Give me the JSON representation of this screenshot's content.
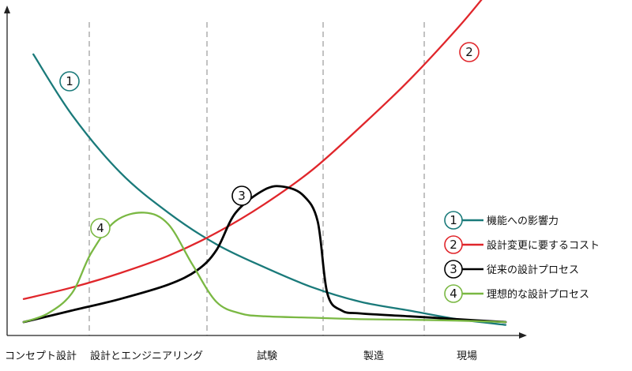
{
  "chart_data": {
    "type": "line",
    "title": "",
    "xlabel": "",
    "ylabel": "",
    "x_scale": "schematic (no numeric ticks)",
    "y_scale": "relative (no numeric ticks)",
    "phases": [
      "コンセプト設計",
      "設計とエンジニアリング",
      "試験",
      "製造",
      "現場"
    ],
    "grid": "dashed vertical dividers between phases",
    "legend_placement": "right",
    "series": [
      {
        "name": "機能への影響力",
        "marker_label": "1",
        "color": "#1a7a7a",
        "points": [
          [
            0.02,
            0.93
          ],
          [
            0.1,
            0.72
          ],
          [
            0.2,
            0.52
          ],
          [
            0.3,
            0.38
          ],
          [
            0.4,
            0.27
          ],
          [
            0.5,
            0.19
          ],
          [
            0.6,
            0.12
          ],
          [
            0.7,
            0.07
          ],
          [
            0.8,
            0.04
          ],
          [
            0.9,
            0.01
          ],
          [
            1.0,
            -0.01
          ]
        ]
      },
      {
        "name": "設計変更に要するコスト",
        "marker_label": "2",
        "color": "#e0262b",
        "points": [
          [
            0.0,
            0.08
          ],
          [
            0.1,
            0.12
          ],
          [
            0.2,
            0.17
          ],
          [
            0.3,
            0.23
          ],
          [
            0.4,
            0.31
          ],
          [
            0.5,
            0.41
          ],
          [
            0.6,
            0.53
          ],
          [
            0.7,
            0.68
          ],
          [
            0.8,
            0.84
          ],
          [
            0.9,
            1.02
          ],
          [
            0.96,
            1.14
          ]
        ]
      },
      {
        "name": "従来の設計プロセス",
        "marker_label": "3",
        "color": "#000000",
        "points": [
          [
            0.0,
            0.0
          ],
          [
            0.1,
            0.04
          ],
          [
            0.2,
            0.08
          ],
          [
            0.3,
            0.13
          ],
          [
            0.36,
            0.18
          ],
          [
            0.4,
            0.25
          ],
          [
            0.44,
            0.38
          ],
          [
            0.5,
            0.46
          ],
          [
            0.54,
            0.47
          ],
          [
            0.58,
            0.44
          ],
          [
            0.61,
            0.35
          ],
          [
            0.63,
            0.1
          ],
          [
            0.66,
            0.04
          ],
          [
            0.7,
            0.03
          ],
          [
            0.8,
            0.02
          ],
          [
            0.9,
            0.01
          ],
          [
            1.0,
            0.0
          ]
        ]
      },
      {
        "name": "理想的な設計プロセス",
        "marker_label": "4",
        "color": "#7ab843",
        "points": [
          [
            0.0,
            0.0
          ],
          [
            0.05,
            0.03
          ],
          [
            0.1,
            0.1
          ],
          [
            0.14,
            0.24
          ],
          [
            0.19,
            0.35
          ],
          [
            0.25,
            0.38
          ],
          [
            0.3,
            0.34
          ],
          [
            0.35,
            0.2
          ],
          [
            0.4,
            0.07
          ],
          [
            0.45,
            0.03
          ],
          [
            0.5,
            0.02
          ],
          [
            0.6,
            0.015
          ],
          [
            0.7,
            0.01
          ],
          [
            0.8,
            0.008
          ],
          [
            0.9,
            0.005
          ],
          [
            1.0,
            0.0
          ]
        ]
      }
    ]
  }
}
